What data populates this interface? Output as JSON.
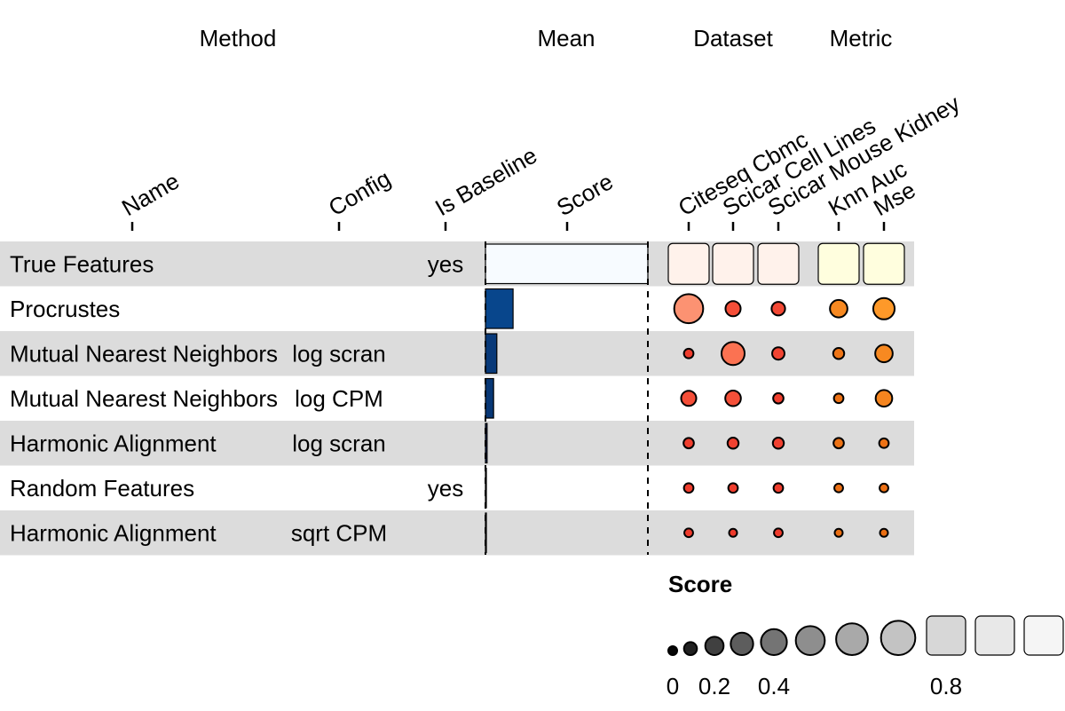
{
  "chart_data": {
    "type": "table",
    "group_headers": [
      "Method",
      "Mean",
      "Dataset",
      "Metric"
    ],
    "columns": {
      "name": "Name",
      "config": "Config",
      "baseline": "Is Baseline",
      "score": "Score",
      "datasets": [
        "Citeseq Cbmc",
        "Scicar Cell Lines",
        "Scicar Mouse Kidney"
      ],
      "metrics": [
        "Knn Auc",
        "Mse"
      ]
    },
    "rows": [
      {
        "name": "True Features",
        "config": "",
        "baseline": "yes",
        "mean": 1.0,
        "datasets": [
          1,
          1,
          1
        ],
        "metrics": [
          1,
          1
        ]
      },
      {
        "name": "Procrustes",
        "config": "",
        "baseline": "",
        "mean": 0.17,
        "datasets": [
          0.55,
          0.15,
          0.12
        ],
        "metrics": [
          0.2,
          0.3
        ]
      },
      {
        "name": "Mutual Nearest Neighbors",
        "config": "log scran",
        "baseline": "",
        "mean": 0.07,
        "datasets": [
          0.06,
          0.35,
          0.1
        ],
        "metrics": [
          0.08,
          0.2
        ]
      },
      {
        "name": "Mutual Nearest Neighbors",
        "config": "log CPM",
        "baseline": "",
        "mean": 0.05,
        "datasets": [
          0.15,
          0.16,
          0.07
        ],
        "metrics": [
          0.06,
          0.18
        ]
      },
      {
        "name": "Harmonic Alignment",
        "config": "log scran",
        "baseline": "",
        "mean": 0.01,
        "datasets": [
          0.07,
          0.08,
          0.08
        ],
        "metrics": [
          0.07,
          0.06
        ]
      },
      {
        "name": "Random Features",
        "config": "",
        "baseline": "yes",
        "mean": 0.0,
        "datasets": [
          0.06,
          0.06,
          0.06
        ],
        "metrics": [
          0.05,
          0.05
        ]
      },
      {
        "name": "Harmonic Alignment",
        "config": "sqrt CPM",
        "baseline": "",
        "mean": 0.0,
        "datasets": [
          0.05,
          0.04,
          0.05
        ],
        "metrics": [
          0.04,
          0.04
        ]
      }
    ],
    "legend": {
      "title": "Score",
      "tick_labels": [
        "0",
        "0.2",
        "0.4",
        "0.8"
      ],
      "tick_values": [
        0,
        0.2,
        0.4,
        0.8
      ],
      "steps": [
        0,
        0.1,
        0.2,
        0.3,
        0.4,
        0.5,
        0.6,
        0.7,
        0.8,
        0.9,
        1.0
      ]
    },
    "colors": {
      "row_stripe": "#dcdcdc",
      "mean_palette": "Blues",
      "dataset_palette": "Reds",
      "metric_palette": "YlOrBr"
    }
  }
}
